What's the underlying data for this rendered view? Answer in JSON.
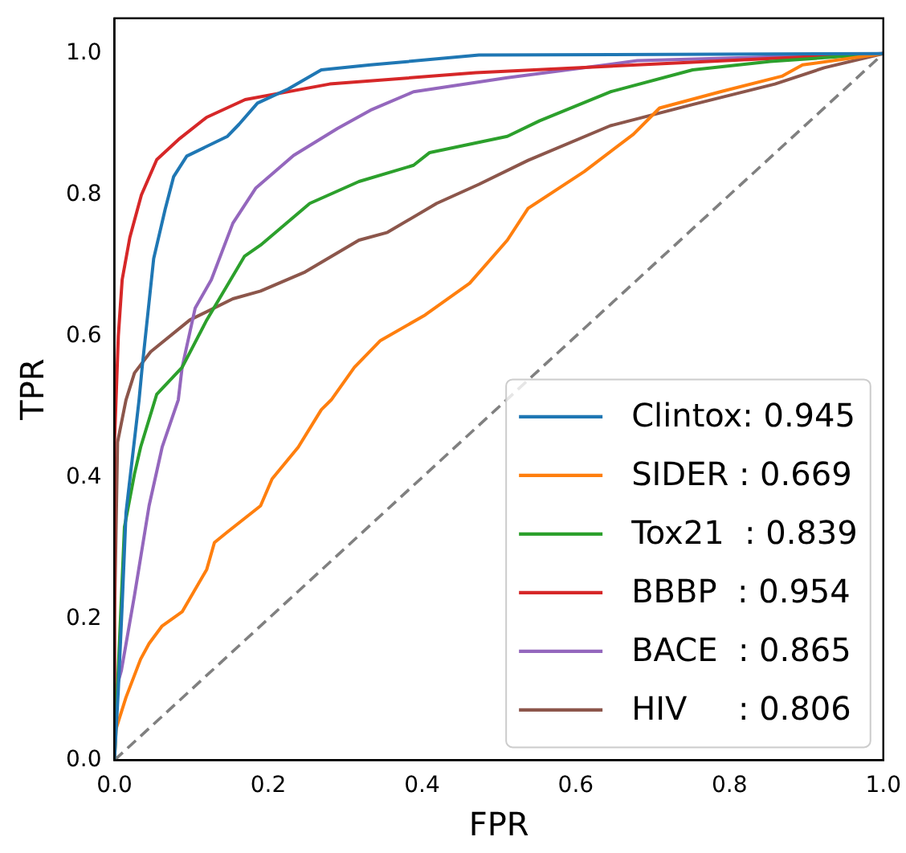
{
  "chart_data": {
    "type": "line",
    "xlabel": "FPR",
    "ylabel": "TPR",
    "xlim": [
      0,
      1
    ],
    "ylim": [
      0,
      1.05
    ],
    "xticks": [
      {
        "value": 0,
        "label": "0.0"
      },
      {
        "value": 0.2,
        "label": "0.2"
      },
      {
        "value": 0.4,
        "label": "0.4"
      },
      {
        "value": 0.6,
        "label": "0.6"
      },
      {
        "value": 0.8,
        "label": "0.8"
      },
      {
        "value": 1,
        "label": "1.0"
      }
    ],
    "yticks": [
      {
        "value": 0,
        "label": "0.0"
      },
      {
        "value": 0.2,
        "label": "0.2"
      },
      {
        "value": 0.4,
        "label": "0.4"
      },
      {
        "value": 0.6,
        "label": "0.6"
      },
      {
        "value": 0.8,
        "label": "0.8"
      },
      {
        "value": 1,
        "label": "1.0"
      }
    ],
    "grid": false,
    "legend": "bottom right",
    "marker": "none",
    "line_style": "solid",
    "series": [
      {
        "name": "Clintox: 0.945",
        "color": "#1f77b4",
        "x": [
          0,
          0.005,
          0.01,
          0.015,
          0.032,
          0.036,
          0.051,
          0.066,
          0.077,
          0.094,
          0.147,
          0.162,
          0.186,
          0.226,
          0.269,
          0.333,
          0.474,
          1
        ],
        "values": [
          0,
          0.1,
          0.22,
          0.35,
          0.51,
          0.556,
          0.71,
          0.78,
          0.826,
          0.855,
          0.883,
          0.9,
          0.93,
          0.95,
          0.977,
          0.984,
          0.998,
          1
        ]
      },
      {
        "name": "SIDER : 0.669",
        "color": "#ff7f0e",
        "x": [
          0,
          0.002,
          0.015,
          0.034,
          0.045,
          0.062,
          0.088,
          0.12,
          0.13,
          0.147,
          0.19,
          0.205,
          0.239,
          0.269,
          0.282,
          0.312,
          0.346,
          0.404,
          0.462,
          0.511,
          0.538,
          0.611,
          0.675,
          0.709,
          0.788,
          0.868,
          0.895,
          1
        ],
        "values": [
          0,
          0.044,
          0.089,
          0.143,
          0.165,
          0.19,
          0.21,
          0.27,
          0.308,
          0.323,
          0.36,
          0.398,
          0.443,
          0.496,
          0.51,
          0.556,
          0.594,
          0.63,
          0.675,
          0.736,
          0.781,
          0.833,
          0.886,
          0.923,
          0.946,
          0.968,
          0.984,
          1
        ]
      },
      {
        "name": "Tox21  : 0.839",
        "color": "#2ca02c",
        "x": [
          0,
          0.004,
          0.013,
          0.026,
          0.034,
          0.055,
          0.088,
          0.12,
          0.169,
          0.19,
          0.254,
          0.318,
          0.389,
          0.41,
          0.511,
          0.553,
          0.645,
          0.752,
          0.853,
          1
        ],
        "values": [
          0,
          0.105,
          0.33,
          0.405,
          0.443,
          0.518,
          0.556,
          0.623,
          0.713,
          0.729,
          0.788,
          0.819,
          0.842,
          0.86,
          0.883,
          0.905,
          0.946,
          0.977,
          0.989,
          1
        ]
      },
      {
        "name": "BBBP  : 0.954",
        "color": "#d62728",
        "x": [
          0,
          0,
          0.005,
          0.01,
          0.02,
          0.035,
          0.055,
          0.085,
          0.12,
          0.17,
          0.28,
          0.47,
          0.68,
          0.85,
          1
        ],
        "values": [
          0,
          0.45,
          0.6,
          0.68,
          0.74,
          0.8,
          0.85,
          0.88,
          0.91,
          0.935,
          0.957,
          0.973,
          0.984,
          0.993,
          1
        ]
      },
      {
        "name": "BACE  : 0.865",
        "color": "#9467bd",
        "x": [
          0,
          0,
          0.002,
          0.009,
          0.026,
          0.045,
          0.062,
          0.083,
          0.088,
          0.105,
          0.126,
          0.154,
          0.184,
          0.233,
          0.29,
          0.333,
          0.389,
          0.511,
          0.68,
          1
        ],
        "values": [
          0,
          0.05,
          0.1,
          0.127,
          0.233,
          0.36,
          0.443,
          0.51,
          0.556,
          0.64,
          0.68,
          0.76,
          0.81,
          0.856,
          0.894,
          0.92,
          0.946,
          0.966,
          0.99,
          1
        ]
      },
      {
        "name": "HIV     : 0.806",
        "color": "#8c564b",
        "x": [
          0,
          0,
          0.004,
          0.015,
          0.026,
          0.047,
          0.098,
          0.154,
          0.19,
          0.248,
          0.318,
          0.355,
          0.419,
          0.474,
          0.538,
          0.645,
          0.752,
          0.859,
          0.923,
          1
        ],
        "values": [
          0,
          0.2,
          0.45,
          0.51,
          0.548,
          0.578,
          0.623,
          0.653,
          0.664,
          0.691,
          0.736,
          0.747,
          0.788,
          0.815,
          0.849,
          0.898,
          0.928,
          0.957,
          0.98,
          1
        ]
      },
      {
        "color": "#808080",
        "line_style": "dashed",
        "x": [
          0,
          1
        ],
        "values": [
          0,
          1
        ]
      }
    ]
  }
}
